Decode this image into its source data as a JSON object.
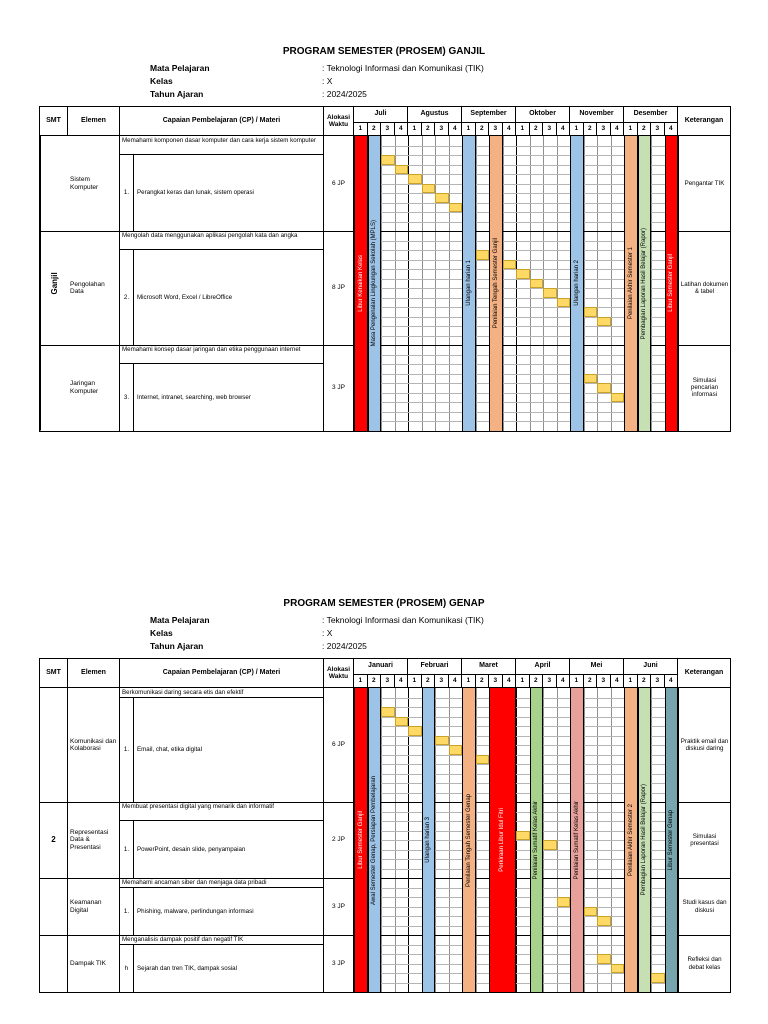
{
  "colors": {
    "highlight": "#FFD966",
    "grid_line": "#b5b5b5",
    "month_line": "#000000"
  },
  "sections": [
    {
      "title": "PROGRAM SEMESTER (PROSEM) GANJIL",
      "meta": [
        {
          "label": "Mata Pelajaran",
          "value": ": Teknologi Informasi dan Komunikasi (TIK)"
        },
        {
          "label": "Kelas",
          "value": ": X"
        },
        {
          "label": "Tahun Ajaran",
          "value": ": 2024/2025"
        }
      ],
      "table": {
        "headers": {
          "smt": "SMT",
          "elemen": "Elemen",
          "materi": "Capaian Pembelajaran (CP) / Materi",
          "alokasi": "Alokasi Waktu",
          "keterangan": "Keterangan"
        },
        "smt_label": "Ganjil",
        "smt_rotate": true,
        "months": [
          "Juli",
          "Agustus",
          "September",
          "Oktober",
          "November",
          "Desember"
        ],
        "weeks": [
          "1",
          "2",
          "3",
          "4"
        ],
        "blocks": [
          {
            "elemen": "Sistem Komputer",
            "desc": "Memahami komponen dasar komputer dan cara kerja sistem komputer",
            "desc_rows": 2,
            "num": "1.",
            "item": "Perangkat keras dan lunak, sistem operasi",
            "jp": "6 JP",
            "keterangan": "Pengantar TIK",
            "rows": 10,
            "yellow": [
              [
                2,
                2
              ],
              [
                3,
                3
              ],
              [
                4,
                4
              ],
              [
                5,
                5
              ],
              [
                6,
                6
              ],
              [
                7,
                7
              ]
            ]
          },
          {
            "elemen": "Pengolahan Data",
            "desc": "Mengolah data menggunakan aplikasi pengolah kata dan angka",
            "desc_rows": 2,
            "num": "2.",
            "item": "Microsoft Word, Excel / LibreOffice",
            "jp": "8 JP",
            "keterangan": "Latihan dokumen & tabel",
            "rows": 12,
            "yellow": [
              [
                2,
                9
              ],
              [
                3,
                11
              ],
              [
                4,
                12
              ],
              [
                5,
                13
              ],
              [
                6,
                14
              ],
              [
                7,
                15
              ],
              [
                8,
                17
              ],
              [
                9,
                18
              ]
            ]
          },
          {
            "elemen": "Jaringan Komputer",
            "desc": "Memahami konsep dasar jaringan dan etika penggunaan internet",
            "desc_rows": 2,
            "num": "3.",
            "item": "Internet, intranet, searching, web browser",
            "jp": "3 JP",
            "keterangan": "Simulasi pencarian informasi",
            "rows": 9,
            "yellow": [
              [
                3,
                17
              ],
              [
                4,
                18
              ],
              [
                5,
                19
              ]
            ]
          }
        ],
        "bands": [
          {
            "col": 0,
            "span": 1,
            "color": "#FF0000",
            "text": "Libur Kenaikan Kelas",
            "text_color": "#FFFFFF"
          },
          {
            "col": 1,
            "span": 1,
            "color": "#9DC3E6",
            "text": "Masa Pengenalan Lingkungan Sekolah (MPLS)",
            "text_color": "#000000"
          },
          {
            "col": 8,
            "span": 1,
            "color": "#9DC3E6",
            "text": "Ulangan harian 1",
            "text_color": "#000000"
          },
          {
            "col": 10,
            "span": 1,
            "color": "#F4B183",
            "text": "Penilaian Tengah Semester Ganjil",
            "text_color": "#000000"
          },
          {
            "col": 16,
            "span": 1,
            "color": "#9DC3E6",
            "text": "Ulangan harian 2",
            "text_color": "#000000"
          },
          {
            "col": 20,
            "span": 1,
            "color": "#F4B183",
            "text": "Penilaian Akhir Semester 1",
            "text_color": "#000000"
          },
          {
            "col": 21,
            "span": 1,
            "color": "#C6E0B4",
            "text": "Pembagian Laporan Hasil Belajar (Rapor)",
            "text_color": "#000000"
          },
          {
            "col": 23,
            "span": 1,
            "color": "#FF0000",
            "text": "Libur Semester Ganjil",
            "text_color": "#FFFFFF"
          }
        ]
      }
    },
    {
      "title": "PROGRAM SEMESTER (PROSEM) GENAP",
      "meta": [
        {
          "label": "Mata Pelajaran",
          "value": ": Teknologi Informasi dan Komunikasi (TIK)"
        },
        {
          "label": "Kelas",
          "value": ": X"
        },
        {
          "label": "Tahun Ajaran",
          "value": ": 2024/2025"
        }
      ],
      "table": {
        "headers": {
          "smt": "SMT",
          "elemen": "Elemen",
          "materi": "Capaian Pembelajaran (CP) / Materi",
          "alokasi": "Alokasi Waktu",
          "keterangan": "Keterangan"
        },
        "smt_label": "2",
        "smt_rotate": false,
        "months": [
          "Januari",
          "Februari",
          "Maret",
          "April",
          "Mei",
          "Juni"
        ],
        "weeks": [
          "1",
          "2",
          "3",
          "4"
        ],
        "blocks": [
          {
            "elemen": "Komunikasi dan Kolaborasi",
            "desc": "Berkomunikasi daring secara etis dan efektif",
            "desc_rows": 1,
            "num": "1.",
            "item": "Email, chat, etika digital",
            "jp": "6 JP",
            "keterangan": "Praktik email dan diskusi daring",
            "rows": 12,
            "yellow": [
              [
                2,
                2
              ],
              [
                3,
                3
              ],
              [
                4,
                4
              ],
              [
                5,
                6
              ],
              [
                6,
                7
              ],
              [
                7,
                9
              ]
            ]
          },
          {
            "elemen": "Representasi Data & Presentasi",
            "desc": "Membuat presentasi digital yang menarik dan informatif",
            "desc_rows": 2,
            "num": "1.",
            "item": "PowerPoint, desain slide, penyampaian",
            "jp": "2 JP",
            "keterangan": "Simulasi presentasi",
            "rows": 8,
            "yellow": [
              [
                3,
                12
              ],
              [
                4,
                14
              ]
            ]
          },
          {
            "elemen": "Keamanan Digital",
            "desc": "Memahami ancaman siber dan menjaga data pribadi",
            "desc_rows": 1,
            "num": "1.",
            "item": "Phishing, malware, perlindungan informasi",
            "jp": "3 JP",
            "keterangan": "Studi kasus dan diskusi",
            "rows": 6,
            "yellow": [
              [
                2,
                15
              ],
              [
                3,
                17
              ],
              [
                4,
                18
              ]
            ]
          },
          {
            "elemen": "Dampak TIK",
            "desc": "Menganalisis dampak positif dan negatif TIK",
            "desc_rows": 1,
            "num": "h",
            "item": "Sejarah dan tren TIK, dampak sosial",
            "jp": "3 JP",
            "keterangan": "Refleksi dan debat kelas",
            "rows": 6,
            "yellow": [
              [
                2,
                18
              ],
              [
                3,
                19
              ],
              [
                4,
                22
              ]
            ]
          }
        ],
        "bands": [
          {
            "col": 0,
            "span": 1,
            "color": "#FF0000",
            "text": "Libur Semester Ganjil",
            "text_color": "#FFFFFF"
          },
          {
            "col": 1,
            "span": 1,
            "color": "#9DC3E6",
            "text": "Awal Semester Genap, Persiapan Pembelajaran",
            "text_color": "#000000"
          },
          {
            "col": 5,
            "span": 1,
            "color": "#9DC3E6",
            "text": "Ulangan harian 3",
            "text_color": "#000000"
          },
          {
            "col": 8,
            "span": 1,
            "color": "#F4B183",
            "text": "Penilaian Tengah Semester Genap",
            "text_color": "#000000"
          },
          {
            "col": 10,
            "span": 2,
            "color": "#FF0000",
            "text": "Perkiraan Libur Idul Fitri",
            "text_color": "#FFFFFF"
          },
          {
            "col": 13,
            "span": 1,
            "color": "#A9D18E",
            "text": "Penilaian Sumatif Kelas Akhir",
            "text_color": "#000000"
          },
          {
            "col": 16,
            "span": 1,
            "color": "#E8A09A",
            "text": "Penilaian Sumatif Kelas Akhir",
            "text_color": "#000000"
          },
          {
            "col": 20,
            "span": 1,
            "color": "#F4B183",
            "text": "Penilaian Akhir Semester 2",
            "text_color": "#000000"
          },
          {
            "col": 21,
            "span": 1,
            "color": "#C6E0B4",
            "text": "Pembagian Laporan Hasil Belajar (Rapor)",
            "text_color": "#000000"
          },
          {
            "col": 23,
            "span": 1,
            "color": "#76A5AF",
            "text": "Libur Semester Genap",
            "text_color": "#000000"
          }
        ]
      }
    }
  ]
}
